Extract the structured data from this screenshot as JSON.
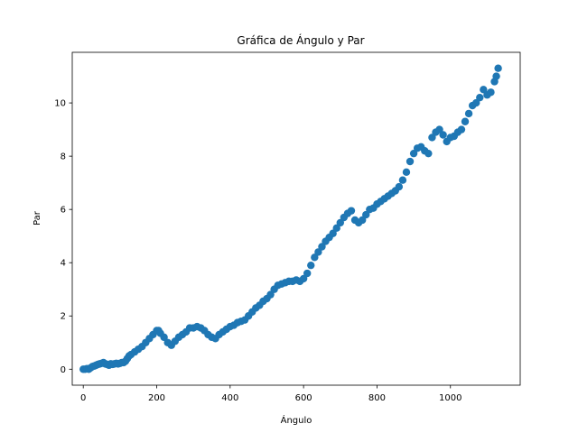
{
  "chart_data": {
    "type": "scatter",
    "title": "Gráfica de Ángulo y Par",
    "xlabel": "Ángulo",
    "ylabel": "Par",
    "xlim": [
      -30,
      1190
    ],
    "ylim": [
      -0.6,
      11.9
    ],
    "xticks": [
      0,
      200,
      400,
      600,
      800,
      1000
    ],
    "yticks": [
      0,
      2,
      4,
      6,
      8,
      10
    ],
    "xtick_labels": [
      "0",
      "200",
      "400",
      "600",
      "800",
      "1000"
    ],
    "ytick_labels": [
      "0",
      "2",
      "4",
      "6",
      "8",
      "10"
    ],
    "grid": false,
    "marker_color": "#1f77b4",
    "series": [
      {
        "points": [
          [
            0,
            0.0
          ],
          [
            5,
            0.0
          ],
          [
            10,
            0.02
          ],
          [
            15,
            0.0
          ],
          [
            20,
            0.05
          ],
          [
            25,
            0.1
          ],
          [
            30,
            0.12
          ],
          [
            35,
            0.15
          ],
          [
            40,
            0.18
          ],
          [
            45,
            0.2
          ],
          [
            50,
            0.22
          ],
          [
            55,
            0.25
          ],
          [
            60,
            0.2
          ],
          [
            65,
            0.18
          ],
          [
            70,
            0.15
          ],
          [
            75,
            0.2
          ],
          [
            80,
            0.18
          ],
          [
            85,
            0.2
          ],
          [
            90,
            0.22
          ],
          [
            95,
            0.2
          ],
          [
            100,
            0.22
          ],
          [
            105,
            0.25
          ],
          [
            110,
            0.25
          ],
          [
            115,
            0.3
          ],
          [
            120,
            0.4
          ],
          [
            125,
            0.5
          ],
          [
            130,
            0.55
          ],
          [
            140,
            0.65
          ],
          [
            150,
            0.75
          ],
          [
            160,
            0.85
          ],
          [
            170,
            1.0
          ],
          [
            180,
            1.15
          ],
          [
            190,
            1.3
          ],
          [
            200,
            1.45
          ],
          [
            205,
            1.45
          ],
          [
            210,
            1.35
          ],
          [
            220,
            1.2
          ],
          [
            230,
            1.0
          ],
          [
            240,
            0.9
          ],
          [
            250,
            1.05
          ],
          [
            260,
            1.2
          ],
          [
            270,
            1.3
          ],
          [
            280,
            1.4
          ],
          [
            290,
            1.55
          ],
          [
            300,
            1.55
          ],
          [
            310,
            1.6
          ],
          [
            320,
            1.55
          ],
          [
            330,
            1.45
          ],
          [
            340,
            1.3
          ],
          [
            350,
            1.2
          ],
          [
            360,
            1.15
          ],
          [
            370,
            1.3
          ],
          [
            380,
            1.4
          ],
          [
            390,
            1.5
          ],
          [
            400,
            1.6
          ],
          [
            410,
            1.65
          ],
          [
            420,
            1.75
          ],
          [
            430,
            1.8
          ],
          [
            440,
            1.85
          ],
          [
            450,
            2.0
          ],
          [
            460,
            2.15
          ],
          [
            470,
            2.3
          ],
          [
            480,
            2.4
          ],
          [
            490,
            2.55
          ],
          [
            500,
            2.65
          ],
          [
            510,
            2.8
          ],
          [
            520,
            3.0
          ],
          [
            530,
            3.15
          ],
          [
            540,
            3.2
          ],
          [
            550,
            3.25
          ],
          [
            560,
            3.3
          ],
          [
            570,
            3.3
          ],
          [
            580,
            3.35
          ],
          [
            590,
            3.3
          ],
          [
            600,
            3.4
          ],
          [
            610,
            3.6
          ],
          [
            620,
            3.9
          ],
          [
            630,
            4.2
          ],
          [
            640,
            4.4
          ],
          [
            650,
            4.6
          ],
          [
            660,
            4.8
          ],
          [
            670,
            4.95
          ],
          [
            680,
            5.1
          ],
          [
            690,
            5.3
          ],
          [
            700,
            5.5
          ],
          [
            710,
            5.7
          ],
          [
            720,
            5.85
          ],
          [
            730,
            5.95
          ],
          [
            740,
            5.6
          ],
          [
            750,
            5.5
          ],
          [
            760,
            5.6
          ],
          [
            770,
            5.8
          ],
          [
            780,
            6.0
          ],
          [
            790,
            6.05
          ],
          [
            800,
            6.2
          ],
          [
            810,
            6.3
          ],
          [
            820,
            6.4
          ],
          [
            830,
            6.5
          ],
          [
            840,
            6.6
          ],
          [
            850,
            6.7
          ],
          [
            860,
            6.85
          ],
          [
            870,
            7.1
          ],
          [
            880,
            7.4
          ],
          [
            890,
            7.8
          ],
          [
            900,
            8.1
          ],
          [
            910,
            8.3
          ],
          [
            920,
            8.35
          ],
          [
            930,
            8.2
          ],
          [
            940,
            8.1
          ],
          [
            950,
            8.7
          ],
          [
            960,
            8.9
          ],
          [
            970,
            9.0
          ],
          [
            980,
            8.8
          ],
          [
            990,
            8.55
          ],
          [
            1000,
            8.7
          ],
          [
            1010,
            8.75
          ],
          [
            1020,
            8.9
          ],
          [
            1030,
            9.0
          ],
          [
            1040,
            9.3
          ],
          [
            1050,
            9.6
          ],
          [
            1060,
            9.9
          ],
          [
            1070,
            10.0
          ],
          [
            1080,
            10.2
          ],
          [
            1090,
            10.5
          ],
          [
            1100,
            10.3
          ],
          [
            1110,
            10.4
          ],
          [
            1120,
            10.8
          ],
          [
            1125,
            11.0
          ],
          [
            1130,
            11.3
          ]
        ]
      }
    ]
  }
}
